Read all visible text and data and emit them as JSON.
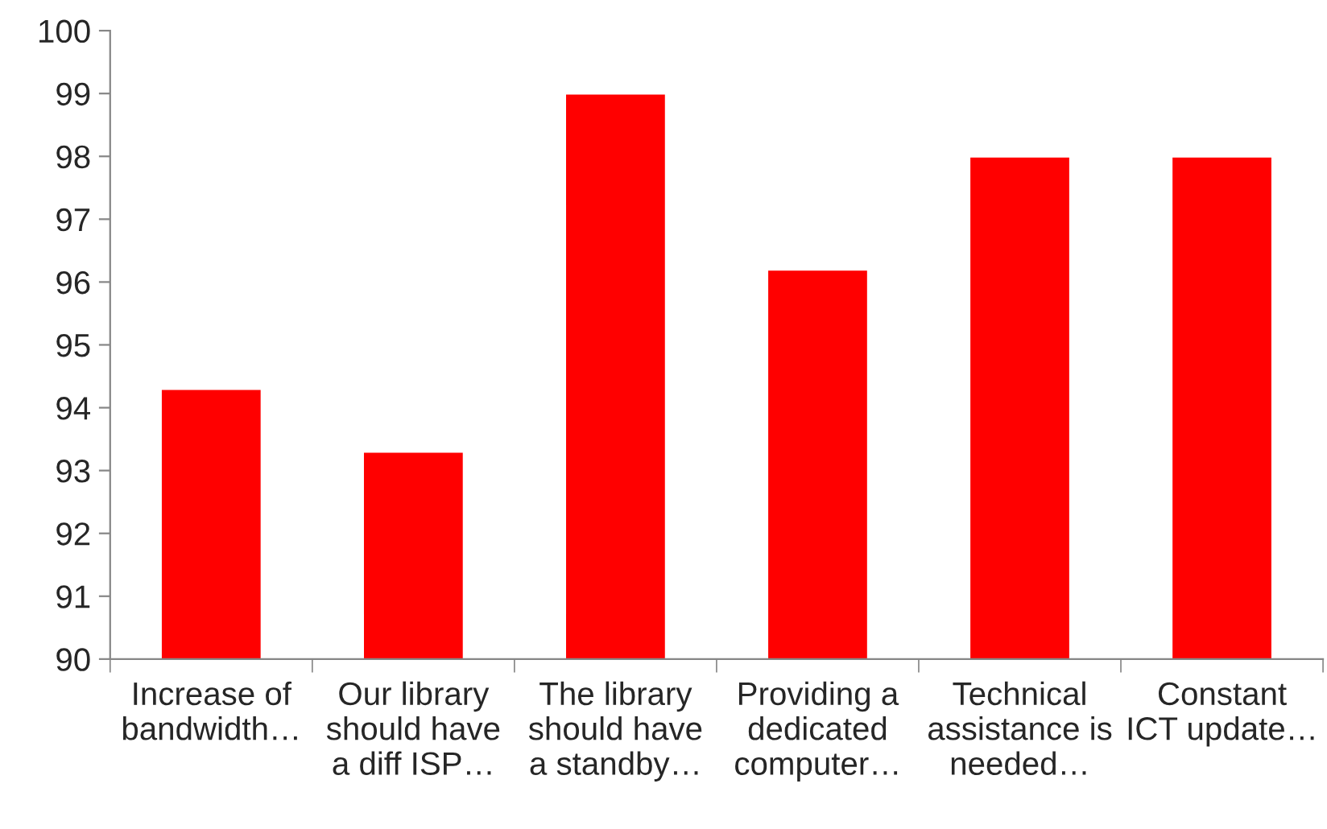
{
  "chart_data": {
    "type": "bar",
    "categories": [
      "Increase of\nbandwidth…",
      "Our library\nshould have\na diff ISP…",
      "The library\nshould have\na standby…",
      "Providing a\ndedicated\ncomputer…",
      "Technical\nassistance is\nneeded…",
      "Constant\nICT update…"
    ],
    "values": [
      94.3,
      93.3,
      99,
      96.2,
      98,
      98
    ],
    "color": "#ff0000",
    "ylim": [
      90,
      100
    ],
    "yticks": [
      90,
      91,
      92,
      93,
      94,
      95,
      96,
      97,
      98,
      99,
      100
    ],
    "grid": false,
    "legend": false
  }
}
